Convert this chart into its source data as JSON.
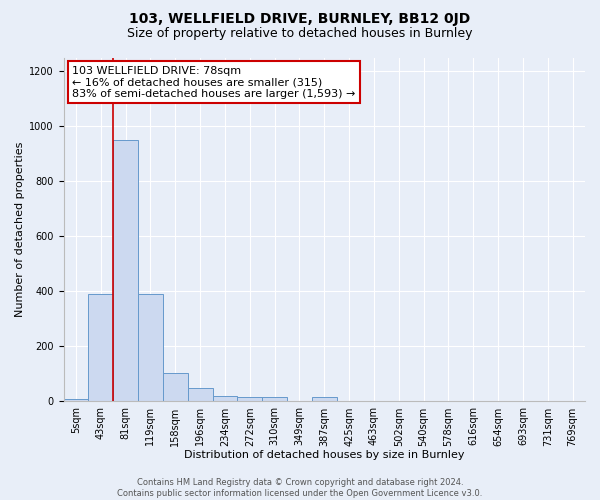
{
  "title": "103, WELLFIELD DRIVE, BURNLEY, BB12 0JD",
  "subtitle": "Size of property relative to detached houses in Burnley",
  "xlabel": "Distribution of detached houses by size in Burnley",
  "ylabel": "Number of detached properties",
  "bin_labels": [
    "5sqm",
    "43sqm",
    "81sqm",
    "119sqm",
    "158sqm",
    "196sqm",
    "234sqm",
    "272sqm",
    "310sqm",
    "349sqm",
    "387sqm",
    "425sqm",
    "463sqm",
    "502sqm",
    "540sqm",
    "578sqm",
    "616sqm",
    "654sqm",
    "693sqm",
    "731sqm",
    "769sqm"
  ],
  "bar_heights": [
    10,
    390,
    950,
    390,
    105,
    50,
    20,
    15,
    15,
    0,
    15,
    0,
    0,
    0,
    0,
    0,
    0,
    0,
    0,
    0,
    0
  ],
  "bar_color": "#ccd9f0",
  "bar_edge_color": "#6699cc",
  "property_line_color": "#cc0000",
  "annotation_text": "103 WELLFIELD DRIVE: 78sqm\n← 16% of detached houses are smaller (315)\n83% of semi-detached houses are larger (1,593) →",
  "annotation_box_color": "#ffffff",
  "annotation_box_edge_color": "#cc0000",
  "ylim": [
    0,
    1250
  ],
  "yticks": [
    0,
    200,
    400,
    600,
    800,
    1000,
    1200
  ],
  "footer_text": "Contains HM Land Registry data © Crown copyright and database right 2024.\nContains public sector information licensed under the Open Government Licence v3.0.",
  "bg_color": "#e8eef8",
  "plot_bg_color": "#e8eef8",
  "title_fontsize": 10,
  "subtitle_fontsize": 9,
  "axis_label_fontsize": 8,
  "tick_fontsize": 7,
  "annotation_fontsize": 8,
  "footer_fontsize": 6
}
